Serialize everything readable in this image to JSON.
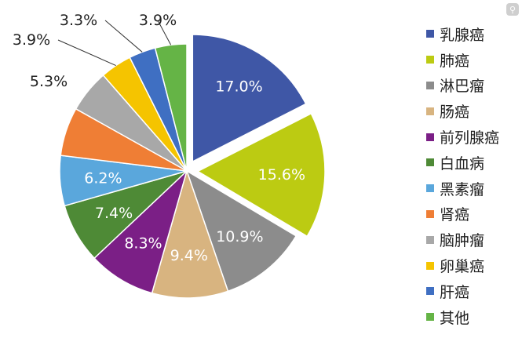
{
  "chart_data": {
    "type": "pie",
    "categories": [
      "乳腺癌",
      "肺癌",
      "淋巴瘤",
      "肠癌",
      "前列腺癌",
      "白血病",
      "黑素瘤",
      "肾癌",
      "脑肿瘤",
      "卵巢癌",
      "肝癌",
      "其他"
    ],
    "values": [
      17.0,
      15.6,
      10.9,
      9.4,
      8.3,
      7.4,
      6.2,
      6.0,
      5.3,
      3.9,
      3.3,
      3.9
    ],
    "data_labels": [
      "17.0%",
      "15.6%",
      "10.9%",
      "9.4%",
      "8.3%",
      "7.4%",
      "6.2%",
      "",
      "5.3%",
      "3.9%",
      "3.3%",
      "3.9%"
    ],
    "colors": [
      "#3f57a6",
      "#bccb12",
      "#8c8c8c",
      "#d8b480",
      "#7b1f86",
      "#4e8a36",
      "#5aa7dc",
      "#ef7e35",
      "#a8a8a8",
      "#f5c400",
      "#3f6fc2",
      "#65b446"
    ],
    "exploded": [
      "乳腺癌",
      "肺癌"
    ],
    "legend_position": "right",
    "title": ""
  },
  "ui": {
    "corner_icon": "magnifier-icon"
  }
}
